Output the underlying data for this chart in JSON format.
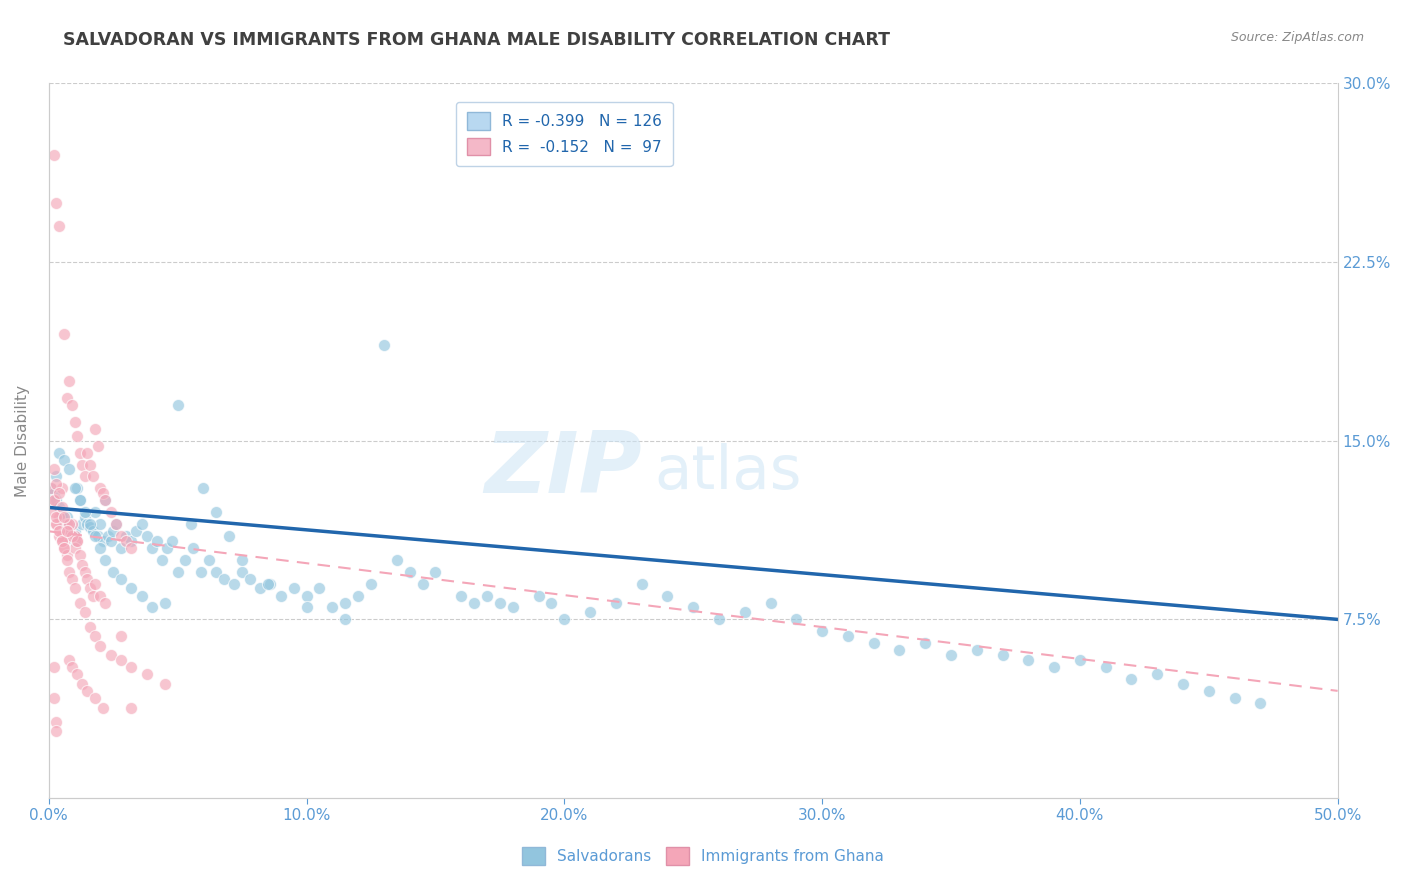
{
  "title": "SALVADORAN VS IMMIGRANTS FROM GHANA MALE DISABILITY CORRELATION CHART",
  "source": "Source: ZipAtlas.com",
  "ylabel": "Male Disability",
  "xlim": [
    0.0,
    0.5
  ],
  "ylim": [
    0.0,
    0.3
  ],
  "ytick_vals": [
    0.075,
    0.15,
    0.225,
    0.3
  ],
  "ytick_labels": [
    "7.5%",
    "15.0%",
    "22.5%",
    "30.0%"
  ],
  "xtick_vals": [
    0.0,
    0.1,
    0.2,
    0.3,
    0.4,
    0.5
  ],
  "xtick_labels": [
    "0.0%",
    "10.0%",
    "20.0%",
    "30.0%",
    "40.0%",
    "50.0%"
  ],
  "blue_color": "#92c5de",
  "pink_color": "#f4a6b8",
  "blue_line_color": "#2166ac",
  "pink_line_color": "#f4a6b8",
  "background_color": "#ffffff",
  "grid_color": "#cccccc",
  "title_color": "#404040",
  "axis_tick_color": "#5b9bd5",
  "watermark_text": "ZIPatlas",
  "blue_scatter_x": [
    0.001,
    0.002,
    0.003,
    0.004,
    0.005,
    0.005,
    0.006,
    0.007,
    0.007,
    0.008,
    0.009,
    0.01,
    0.01,
    0.011,
    0.012,
    0.013,
    0.014,
    0.015,
    0.016,
    0.017,
    0.018,
    0.019,
    0.02,
    0.021,
    0.022,
    0.023,
    0.024,
    0.025,
    0.026,
    0.028,
    0.03,
    0.032,
    0.034,
    0.036,
    0.038,
    0.04,
    0.042,
    0.044,
    0.046,
    0.048,
    0.05,
    0.053,
    0.056,
    0.059,
    0.062,
    0.065,
    0.068,
    0.072,
    0.075,
    0.078,
    0.082,
    0.086,
    0.09,
    0.095,
    0.1,
    0.105,
    0.11,
    0.115,
    0.12,
    0.125,
    0.13,
    0.135,
    0.14,
    0.145,
    0.15,
    0.16,
    0.165,
    0.17,
    0.175,
    0.18,
    0.19,
    0.195,
    0.2,
    0.21,
    0.22,
    0.23,
    0.24,
    0.25,
    0.26,
    0.27,
    0.28,
    0.29,
    0.3,
    0.31,
    0.32,
    0.33,
    0.34,
    0.35,
    0.36,
    0.37,
    0.38,
    0.39,
    0.4,
    0.41,
    0.42,
    0.43,
    0.44,
    0.45,
    0.46,
    0.47,
    0.003,
    0.004,
    0.006,
    0.008,
    0.01,
    0.012,
    0.014,
    0.016,
    0.018,
    0.02,
    0.022,
    0.025,
    0.028,
    0.032,
    0.036,
    0.04,
    0.045,
    0.05,
    0.055,
    0.06,
    0.065,
    0.07,
    0.075,
    0.085,
    0.1,
    0.115
  ],
  "blue_scatter_y": [
    0.13,
    0.128,
    0.125,
    0.122,
    0.12,
    0.118,
    0.115,
    0.118,
    0.112,
    0.115,
    0.11,
    0.112,
    0.108,
    0.13,
    0.125,
    0.115,
    0.118,
    0.115,
    0.114,
    0.112,
    0.12,
    0.11,
    0.115,
    0.108,
    0.125,
    0.11,
    0.108,
    0.112,
    0.115,
    0.105,
    0.11,
    0.108,
    0.112,
    0.115,
    0.11,
    0.105,
    0.108,
    0.1,
    0.105,
    0.108,
    0.095,
    0.1,
    0.105,
    0.095,
    0.1,
    0.095,
    0.092,
    0.09,
    0.095,
    0.092,
    0.088,
    0.09,
    0.085,
    0.088,
    0.085,
    0.088,
    0.08,
    0.082,
    0.085,
    0.09,
    0.19,
    0.1,
    0.095,
    0.09,
    0.095,
    0.085,
    0.082,
    0.085,
    0.082,
    0.08,
    0.085,
    0.082,
    0.075,
    0.078,
    0.082,
    0.09,
    0.085,
    0.08,
    0.075,
    0.078,
    0.082,
    0.075,
    0.07,
    0.068,
    0.065,
    0.062,
    0.065,
    0.06,
    0.062,
    0.06,
    0.058,
    0.055,
    0.058,
    0.055,
    0.05,
    0.052,
    0.048,
    0.045,
    0.042,
    0.04,
    0.135,
    0.145,
    0.142,
    0.138,
    0.13,
    0.125,
    0.12,
    0.115,
    0.11,
    0.105,
    0.1,
    0.095,
    0.092,
    0.088,
    0.085,
    0.08,
    0.082,
    0.165,
    0.115,
    0.13,
    0.12,
    0.11,
    0.1,
    0.09,
    0.08,
    0.075
  ],
  "pink_scatter_x": [
    0.001,
    0.002,
    0.002,
    0.003,
    0.003,
    0.004,
    0.004,
    0.005,
    0.005,
    0.006,
    0.006,
    0.007,
    0.007,
    0.008,
    0.008,
    0.009,
    0.009,
    0.01,
    0.01,
    0.011,
    0.011,
    0.012,
    0.013,
    0.014,
    0.015,
    0.016,
    0.017,
    0.018,
    0.019,
    0.02,
    0.021,
    0.022,
    0.024,
    0.026,
    0.028,
    0.03,
    0.032,
    0.002,
    0.003,
    0.004,
    0.005,
    0.006,
    0.007,
    0.008,
    0.009,
    0.01,
    0.011,
    0.012,
    0.013,
    0.014,
    0.015,
    0.016,
    0.017,
    0.018,
    0.02,
    0.022,
    0.002,
    0.003,
    0.004,
    0.005,
    0.006,
    0.007,
    0.008,
    0.009,
    0.01,
    0.012,
    0.014,
    0.016,
    0.018,
    0.02,
    0.024,
    0.028,
    0.032,
    0.038,
    0.045,
    0.002,
    0.003,
    0.004,
    0.005,
    0.006,
    0.007,
    0.008,
    0.009,
    0.011,
    0.013,
    0.015,
    0.018,
    0.021,
    0.002,
    0.002,
    0.003,
    0.003,
    0.028,
    0.032
  ],
  "pink_scatter_y": [
    0.13,
    0.27,
    0.125,
    0.25,
    0.115,
    0.24,
    0.118,
    0.13,
    0.11,
    0.195,
    0.108,
    0.168,
    0.115,
    0.175,
    0.112,
    0.165,
    0.115,
    0.158,
    0.11,
    0.152,
    0.108,
    0.145,
    0.14,
    0.135,
    0.145,
    0.14,
    0.135,
    0.155,
    0.148,
    0.13,
    0.128,
    0.125,
    0.12,
    0.115,
    0.11,
    0.108,
    0.105,
    0.12,
    0.115,
    0.11,
    0.108,
    0.105,
    0.102,
    0.115,
    0.11,
    0.105,
    0.108,
    0.102,
    0.098,
    0.095,
    0.092,
    0.088,
    0.085,
    0.09,
    0.085,
    0.082,
    0.125,
    0.118,
    0.112,
    0.108,
    0.105,
    0.1,
    0.095,
    0.092,
    0.088,
    0.082,
    0.078,
    0.072,
    0.068,
    0.064,
    0.06,
    0.058,
    0.055,
    0.052,
    0.048,
    0.138,
    0.132,
    0.128,
    0.122,
    0.118,
    0.112,
    0.058,
    0.055,
    0.052,
    0.048,
    0.045,
    0.042,
    0.038,
    0.055,
    0.042,
    0.032,
    0.028,
    0.068,
    0.038
  ],
  "blue_trendline_x": [
    0.0,
    0.5
  ],
  "blue_trendline_y": [
    0.122,
    0.075
  ],
  "pink_trendline_x": [
    0.0,
    0.5
  ],
  "pink_trendline_y": [
    0.112,
    0.045
  ]
}
